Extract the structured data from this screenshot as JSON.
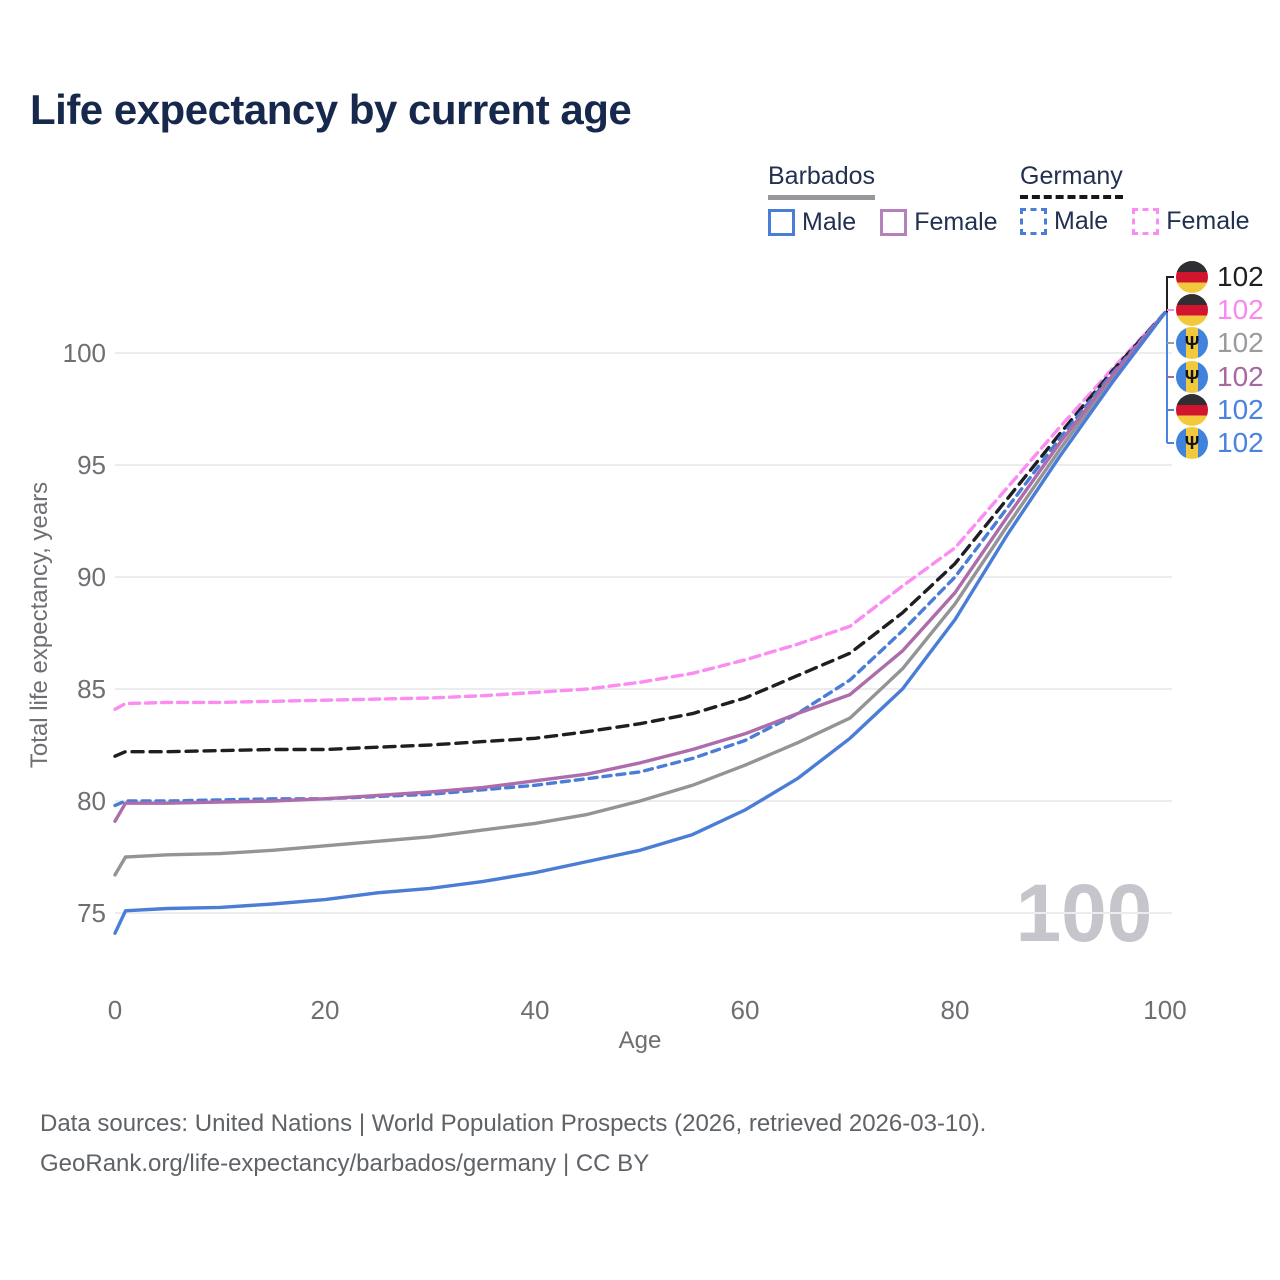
{
  "title": "Life expectancy by current age",
  "watermark_age": "100",
  "icons": {
    "barbados_trident": "Ψ"
  },
  "legend": {
    "groups": [
      {
        "id": "barbados",
        "label": "Barbados",
        "line_style": "solid",
        "underline_color": "#97979c",
        "items": [
          {
            "id": "male",
            "label": "Male",
            "color": "#4a7dd6"
          },
          {
            "id": "female",
            "label": "Female",
            "color": "#b581b9"
          }
        ]
      },
      {
        "id": "germany",
        "label": "Germany",
        "line_style": "dashed",
        "underline_color": "#17171a",
        "items": [
          {
            "id": "male",
            "label": "Male",
            "color": "#4a7dd6"
          },
          {
            "id": "female",
            "label": "Female",
            "color": "#fb8cf1"
          }
        ]
      }
    ]
  },
  "endpoint_labels": [
    {
      "country": "germany",
      "series": "Germany Total",
      "value": "102",
      "color": "#1f1f23"
    },
    {
      "country": "germany",
      "series": "Germany Female",
      "value": "102",
      "color": "#f988ef"
    },
    {
      "country": "barbados",
      "series": "Barbados Total",
      "value": "102",
      "color": "#9b9b9f"
    },
    {
      "country": "barbados",
      "series": "Barbados Female",
      "value": "102",
      "color": "#a6689f"
    },
    {
      "country": "germany",
      "series": "Germany Male",
      "value": "102",
      "color": "#4b82df"
    },
    {
      "country": "barbados",
      "series": "Barbados Male",
      "value": "102",
      "color": "#4b82df"
    }
  ],
  "footer": {
    "line1": "Data sources: United Nations | World Population Prospects (2026, retrieved 2026-03-10).",
    "line2": "GeoRank.org/life-expectancy/barbados/germany | CC BY"
  },
  "chart_data": {
    "type": "line",
    "title": "Life expectancy by current age",
    "xlabel": "Age",
    "ylabel": "Total life expectancy, years",
    "xlim": [
      0,
      100
    ],
    "ylim": [
      73.5,
      102.5
    ],
    "xticks": [
      0,
      20,
      40,
      60,
      80,
      100
    ],
    "yticks": [
      75,
      80,
      85,
      90,
      95,
      100
    ],
    "grid": "horizontal-only",
    "legend_position": "top-right",
    "x": [
      0,
      1,
      5,
      10,
      15,
      20,
      25,
      30,
      35,
      40,
      45,
      50,
      55,
      60,
      65,
      70,
      75,
      80,
      85,
      90,
      95,
      100
    ],
    "series": [
      {
        "name": "Germany Female",
        "country": "Germany",
        "sex": "Female",
        "color": "#fb8cf1",
        "dash": [
          10,
          6
        ],
        "values": [
          84.1,
          84.35,
          84.4,
          84.4,
          84.45,
          84.5,
          84.55,
          84.6,
          84.7,
          84.85,
          85.0,
          85.3,
          85.7,
          86.3,
          87.0,
          87.8,
          89.6,
          91.3,
          94.0,
          96.7,
          99.3,
          101.8
        ]
      },
      {
        "name": "Germany Total",
        "country": "Germany",
        "sex": "Both",
        "color": "#1f1f23",
        "dash": [
          11,
          7
        ],
        "values": [
          82.0,
          82.2,
          82.2,
          82.25,
          82.3,
          82.3,
          82.4,
          82.5,
          82.65,
          82.8,
          83.1,
          83.45,
          83.9,
          84.6,
          85.6,
          86.6,
          88.4,
          90.6,
          93.5,
          96.4,
          99.2,
          101.8
        ]
      },
      {
        "name": "Germany Male",
        "country": "Germany",
        "sex": "Male",
        "color": "#4a7dd6",
        "dash": [
          8,
          6
        ],
        "values": [
          79.8,
          80.0,
          80.0,
          80.05,
          80.1,
          80.1,
          80.2,
          80.3,
          80.5,
          80.7,
          81.0,
          81.3,
          81.9,
          82.7,
          83.9,
          85.4,
          87.6,
          90.0,
          93.1,
          96.2,
          99.1,
          101.8
        ]
      },
      {
        "name": "Barbados Total",
        "country": "Barbados",
        "sex": "Both",
        "color": "#949497",
        "dash": null,
        "values": [
          76.7,
          77.5,
          77.6,
          77.65,
          77.8,
          78.0,
          78.2,
          78.4,
          78.7,
          79.0,
          79.4,
          80.0,
          80.7,
          81.6,
          82.6,
          83.7,
          85.9,
          88.8,
          92.3,
          95.7,
          98.9,
          101.8
        ]
      },
      {
        "name": "Barbados Female",
        "country": "Barbados",
        "sex": "Female",
        "color": "#ad6cab",
        "dash": null,
        "values": [
          79.1,
          79.9,
          79.9,
          79.95,
          80.0,
          80.1,
          80.25,
          80.4,
          80.6,
          80.9,
          81.2,
          81.7,
          82.3,
          83.0,
          83.9,
          84.75,
          86.7,
          89.3,
          92.7,
          96.0,
          99.0,
          101.8
        ]
      },
      {
        "name": "Barbados Male",
        "country": "Barbados",
        "sex": "Male",
        "color": "#4a7dd6",
        "dash": null,
        "values": [
          74.1,
          75.1,
          75.2,
          75.25,
          75.4,
          75.6,
          75.9,
          76.1,
          76.4,
          76.8,
          77.3,
          77.8,
          78.5,
          79.6,
          81.0,
          82.8,
          85.0,
          88.1,
          91.9,
          95.4,
          98.7,
          101.8
        ]
      }
    ]
  },
  "colors": {
    "grid": "#ececef",
    "axis_text": "#6e6e73",
    "watermark": "#c5c5cb",
    "leader_black": "#1f1f23",
    "leader_blue": "#4b82df"
  }
}
